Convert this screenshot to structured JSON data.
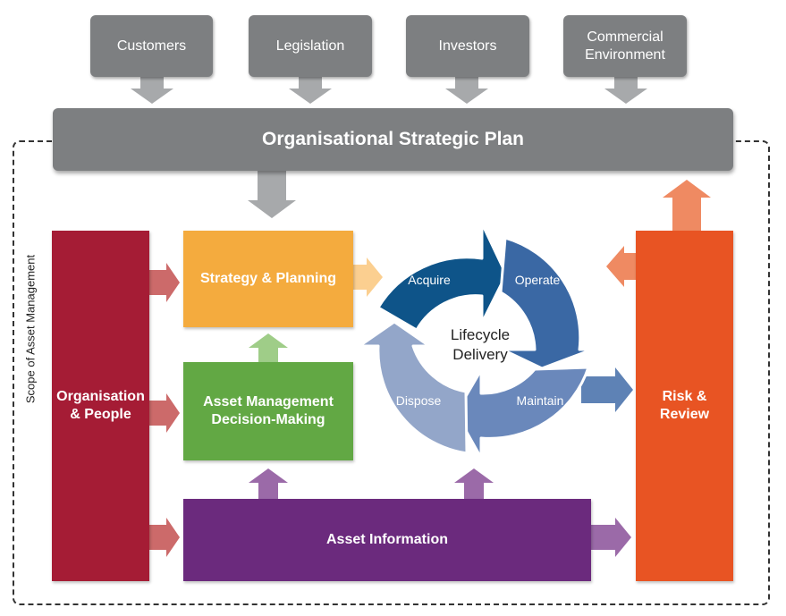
{
  "stakeholders": [
    "Customers",
    "Legislation",
    "Investors",
    "Commercial Environment"
  ],
  "strategic_plan": "Organisational Strategic Plan",
  "scope_label": "Scope of Asset Management",
  "blocks": {
    "organisation_people": "Organisation & People",
    "strategy_planning": "Strategy & Planning",
    "decision_making": "Asset Management Decision-Making",
    "asset_information": "Asset Information",
    "risk_review": "Risk & Review"
  },
  "lifecycle": {
    "center_line1": "Lifecycle",
    "center_line2": "Delivery",
    "stages": [
      "Acquire",
      "Operate",
      "Maintain",
      "Dispose"
    ]
  },
  "colors": {
    "gray": "#7d7f81",
    "crimson": "#a51c35",
    "orange_yellow": "#f4ab3e",
    "green": "#62a844",
    "purple": "#6b2a7d",
    "orange_red": "#e85423",
    "acquire": "#0e5489",
    "operate": "#3a68a4",
    "maintain": "#6a88bb",
    "dispose": "#93a6c9"
  }
}
